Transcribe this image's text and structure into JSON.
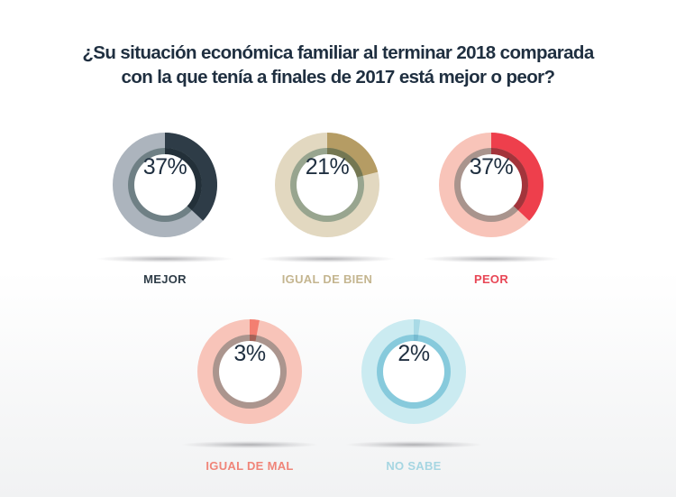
{
  "title": {
    "line1": "¿Su situación económica familiar al terminar 2018 comparada",
    "line2": "con la que tenía a finales de 2017 está mejor o peor?"
  },
  "chart_data": {
    "type": "pie",
    "title": "¿Su situación económica familiar al terminar 2018 comparada con la que tenía a finales de 2017 está mejor o peor?",
    "categories": [
      "MEJOR",
      "IGUAL DE BIEN",
      "PEOR",
      "IGUAL DE MAL",
      "NO SABE"
    ],
    "values": [
      37,
      21,
      37,
      3,
      2
    ],
    "unit": "%",
    "items": [
      {
        "label": "MEJOR",
        "value": 37,
        "display": "37%",
        "colors": {
          "base": "#acb4bd",
          "arc": "#2e3c47",
          "inner": "#6f8085",
          "inner_arc": "#233039",
          "label": "#2e3c47"
        }
      },
      {
        "label": "IGUAL DE BIEN",
        "value": 21,
        "display": "21%",
        "colors": {
          "base": "#e2d8c0",
          "arc": "#b59c64",
          "inner": "#98a58f",
          "inner_arc": "#747752",
          "label": "#c4b58f"
        }
      },
      {
        "label": "PEOR",
        "value": 37,
        "display": "37%",
        "colors": {
          "base": "#f8c4b9",
          "arc": "#ee3f4c",
          "inner": "#a9948d",
          "inner_arc": "#a3343b",
          "label": "#e84655"
        }
      },
      {
        "label": "IGUAL DE MAL",
        "value": 3,
        "display": "3%",
        "colors": {
          "base": "#f8c4b9",
          "arc": "#f37f71",
          "inner": "#ab958e",
          "inner_arc": "#a46257",
          "label": "#f08579"
        }
      },
      {
        "label": "NO SABE",
        "value": 2,
        "display": "2%",
        "colors": {
          "base": "#cbebf1",
          "arc": "#a9dae6",
          "inner": "#87cadc",
          "inner_arc": "#76bad0",
          "label": "#a6d6e2"
        }
      }
    ]
  }
}
